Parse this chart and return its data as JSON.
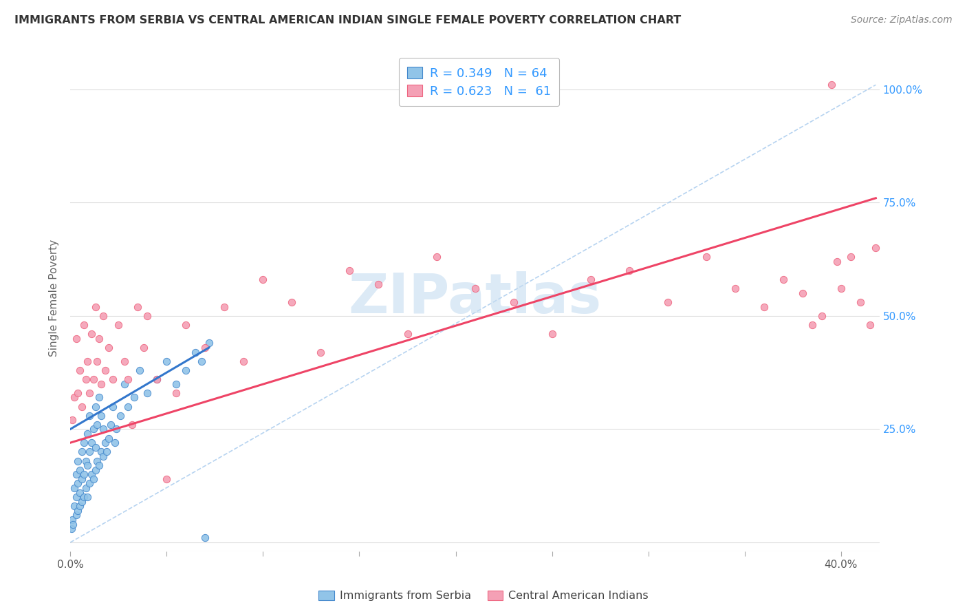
{
  "title": "IMMIGRANTS FROM SERBIA VS CENTRAL AMERICAN INDIAN SINGLE FEMALE POVERTY CORRELATION CHART",
  "source": "Source: ZipAtlas.com",
  "ylabel": "Single Female Poverty",
  "legend_serbia": "Immigrants from Serbia",
  "legend_central": "Central American Indians",
  "legend_r_serbia": "R = 0.349",
  "legend_n_serbia": "N = 64",
  "legend_r_central": "R = 0.623",
  "legend_n_central": "N = 61",
  "watermark": "ZIPatlas",
  "xlim": [
    0.0,
    0.42
  ],
  "ylim": [
    -0.02,
    1.1
  ],
  "color_serbia": "#91C4E8",
  "color_central": "#F4A0B5",
  "color_serbia_line": "#4488CC",
  "color_central_line": "#EE6680",
  "serbia_scatter_x": [
    0.0005,
    0.001,
    0.0015,
    0.002,
    0.002,
    0.003,
    0.003,
    0.003,
    0.004,
    0.004,
    0.004,
    0.005,
    0.005,
    0.005,
    0.006,
    0.006,
    0.006,
    0.007,
    0.007,
    0.007,
    0.008,
    0.008,
    0.009,
    0.009,
    0.009,
    0.01,
    0.01,
    0.01,
    0.011,
    0.011,
    0.012,
    0.012,
    0.013,
    0.013,
    0.013,
    0.014,
    0.014,
    0.015,
    0.015,
    0.016,
    0.016,
    0.017,
    0.017,
    0.018,
    0.019,
    0.02,
    0.021,
    0.022,
    0.023,
    0.024,
    0.026,
    0.028,
    0.03,
    0.033,
    0.036,
    0.04,
    0.045,
    0.05,
    0.055,
    0.06,
    0.065,
    0.068,
    0.07,
    0.072
  ],
  "serbia_scatter_y": [
    0.03,
    0.05,
    0.04,
    0.08,
    0.12,
    0.06,
    0.1,
    0.15,
    0.07,
    0.13,
    0.18,
    0.08,
    0.11,
    0.16,
    0.09,
    0.14,
    0.2,
    0.1,
    0.15,
    0.22,
    0.12,
    0.18,
    0.1,
    0.17,
    0.24,
    0.13,
    0.2,
    0.28,
    0.15,
    0.22,
    0.14,
    0.25,
    0.16,
    0.21,
    0.3,
    0.18,
    0.26,
    0.17,
    0.32,
    0.2,
    0.28,
    0.19,
    0.25,
    0.22,
    0.2,
    0.23,
    0.26,
    0.3,
    0.22,
    0.25,
    0.28,
    0.35,
    0.3,
    0.32,
    0.38,
    0.33,
    0.36,
    0.4,
    0.35,
    0.38,
    0.42,
    0.4,
    0.01,
    0.44
  ],
  "central_scatter_x": [
    0.001,
    0.002,
    0.003,
    0.004,
    0.005,
    0.006,
    0.007,
    0.008,
    0.009,
    0.01,
    0.011,
    0.012,
    0.013,
    0.014,
    0.015,
    0.016,
    0.017,
    0.018,
    0.02,
    0.022,
    0.025,
    0.028,
    0.03,
    0.032,
    0.035,
    0.038,
    0.04,
    0.045,
    0.05,
    0.055,
    0.06,
    0.07,
    0.08,
    0.09,
    0.1,
    0.115,
    0.13,
    0.145,
    0.16,
    0.175,
    0.19,
    0.21,
    0.23,
    0.25,
    0.27,
    0.29,
    0.31,
    0.33,
    0.345,
    0.36,
    0.37,
    0.38,
    0.385,
    0.39,
    0.395,
    0.398,
    0.4,
    0.405,
    0.41,
    0.415,
    0.418
  ],
  "central_scatter_y": [
    0.27,
    0.32,
    0.45,
    0.33,
    0.38,
    0.3,
    0.48,
    0.36,
    0.4,
    0.33,
    0.46,
    0.36,
    0.52,
    0.4,
    0.45,
    0.35,
    0.5,
    0.38,
    0.43,
    0.36,
    0.48,
    0.4,
    0.36,
    0.26,
    0.52,
    0.43,
    0.5,
    0.36,
    0.14,
    0.33,
    0.48,
    0.43,
    0.52,
    0.4,
    0.58,
    0.53,
    0.42,
    0.6,
    0.57,
    0.46,
    0.63,
    0.56,
    0.53,
    0.46,
    0.58,
    0.6,
    0.53,
    0.63,
    0.56,
    0.52,
    0.58,
    0.55,
    0.48,
    0.5,
    1.01,
    0.62,
    0.56,
    0.63,
    0.53,
    0.48,
    0.65
  ],
  "serbia_line_x": [
    0.0,
    0.072
  ],
  "serbia_line_y": [
    0.25,
    0.43
  ],
  "central_line_x": [
    0.0,
    0.418
  ],
  "central_line_y": [
    0.22,
    0.76
  ],
  "dashed_line_x": [
    0.0,
    0.418
  ],
  "dashed_line_y": [
    0.0,
    1.01
  ],
  "background_color": "#FFFFFF",
  "grid_color": "#DDDDDD",
  "xtick_positions": [
    0.0,
    0.05,
    0.1,
    0.15,
    0.2,
    0.25,
    0.3,
    0.35,
    0.4
  ],
  "xtick_labels": [
    "0.0%",
    "",
    "",
    "",
    "",
    "",
    "",
    "",
    "40.0%"
  ],
  "ytick_right_positions": [
    0.0,
    0.25,
    0.5,
    0.75,
    1.0
  ],
  "ytick_right_labels": [
    "",
    "25.0%",
    "50.0%",
    "75.0%",
    "100.0%"
  ]
}
